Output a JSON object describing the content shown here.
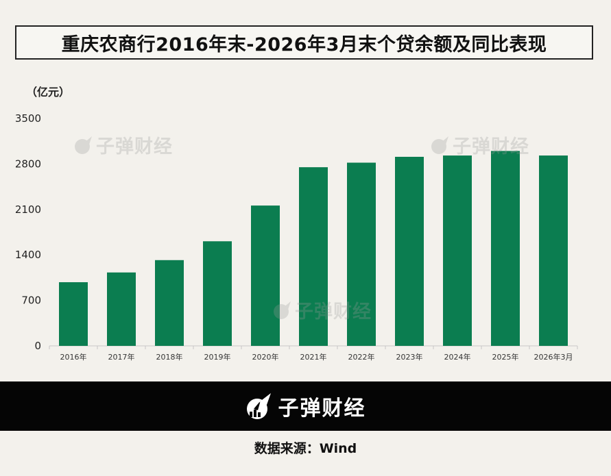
{
  "title": "重庆农商行2016年末-2026年3月末个贷余额及同比表现",
  "unit_label": "（亿元）",
  "watermark_text": "子弹财经",
  "brand": {
    "name": "子弹财经",
    "logo_icon": "bullet-finance-logo-icon"
  },
  "source": "数据来源：Wind",
  "colors": {
    "bar": "#0b7d50",
    "background": "#f3f1ec",
    "footer": "#050505"
  },
  "chart_data": {
    "type": "bar",
    "title": "重庆农商行2016年末-2026年3月末个贷余额及同比表现",
    "xlabel": "",
    "ylabel": "（亿元）",
    "categories": [
      "2016年",
      "2017年",
      "2018年",
      "2019年",
      "2020年",
      "2021年",
      "2022年",
      "2023年",
      "2024年",
      "2025年",
      "2026年3月"
    ],
    "values": [
      980,
      1130,
      1320,
      1610,
      2160,
      2750,
      2820,
      2910,
      2930,
      3000,
      2930
    ],
    "ylim": [
      0,
      3500
    ],
    "yticks": [
      0,
      700,
      1400,
      2100,
      2800,
      3500
    ],
    "grid": false,
    "legend": "none"
  }
}
